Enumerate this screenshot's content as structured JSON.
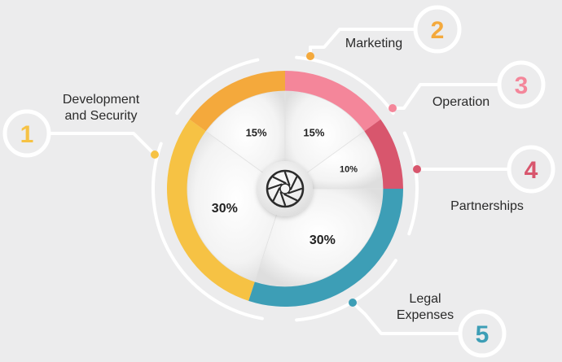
{
  "chart_data": {
    "type": "pie",
    "title": "",
    "slices": [
      {
        "index": "1",
        "name_lines": [
          "Development",
          "and Security"
        ],
        "value": 30,
        "label": "30%",
        "color": "#f6c244"
      },
      {
        "index": "2",
        "name_lines": [
          "Marketing"
        ],
        "value": 15,
        "label": "15%",
        "color": "#f4a93c"
      },
      {
        "index": "3",
        "name_lines": [
          "Operation"
        ],
        "value": 15,
        "label": "15%",
        "color": "#f4869a"
      },
      {
        "index": "4",
        "name_lines": [
          "Partnerships"
        ],
        "value": 10,
        "label": "10%",
        "color": "#d8566d"
      },
      {
        "index": "5",
        "name_lines": [
          "Legal",
          "Expenses"
        ],
        "value": 30,
        "label": "30%",
        "color": "#3d9eb6"
      }
    ]
  }
}
